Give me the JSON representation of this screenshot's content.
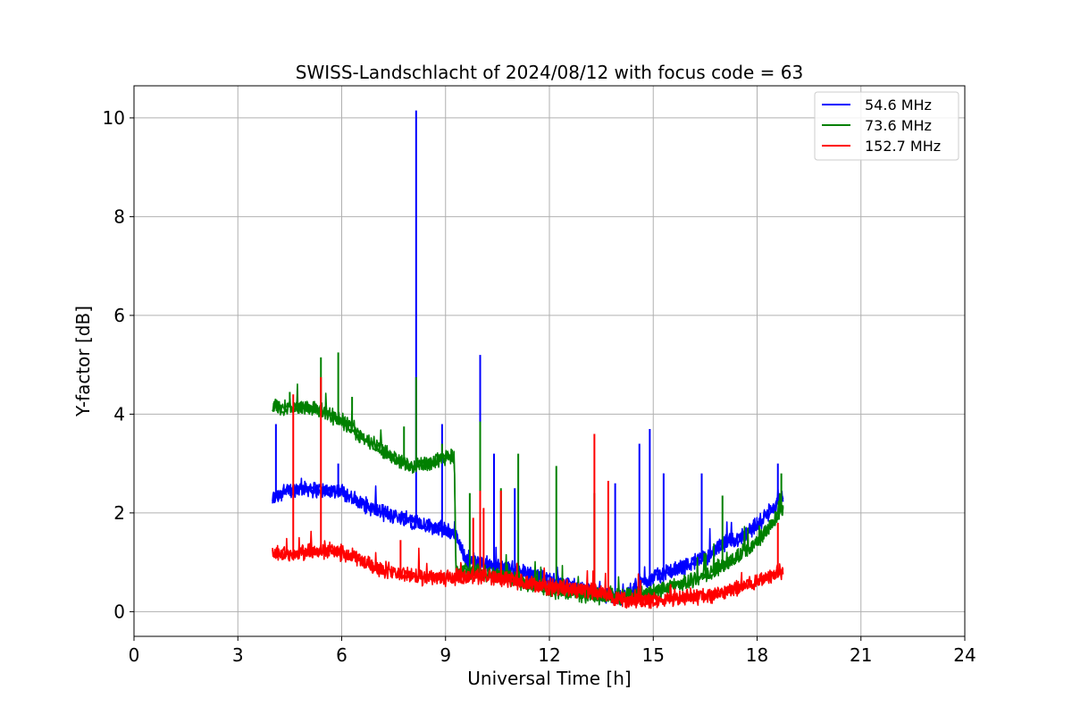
{
  "chart_data": {
    "type": "line",
    "title": "SWISS-Landschlacht of 2024/08/12 with focus code = 63",
    "xlabel": "Universal Time [h]",
    "ylabel": "Y-factor [dB]",
    "xlim": [
      0,
      24
    ],
    "ylim": [
      -0.5,
      10.65
    ],
    "xticks": [
      0,
      3,
      6,
      9,
      12,
      15,
      18,
      21,
      24
    ],
    "yticks": [
      0,
      2,
      4,
      6,
      8,
      10
    ],
    "xtick_labels": [
      "0",
      "3",
      "6",
      "9",
      "12",
      "15",
      "18",
      "21",
      "24"
    ],
    "ytick_labels": [
      "0",
      "2",
      "4",
      "6",
      "8",
      "10"
    ],
    "grid": true,
    "legend_position": "top-right",
    "series": [
      {
        "name": "54.6 MHz",
        "legend_label": "  54.6 MHz",
        "color": "#0000ff",
        "x": [
          4.0,
          4.5,
          5.0,
          5.5,
          6.0,
          6.5,
          7.0,
          7.5,
          8.0,
          8.5,
          9.0,
          9.3,
          9.6,
          10.0,
          10.5,
          11.0,
          11.5,
          12.0,
          12.5,
          13.0,
          13.5,
          14.0,
          14.5,
          15.0,
          15.5,
          16.0,
          16.5,
          17.0,
          17.5,
          18.0,
          18.4,
          18.75
        ],
        "y": [
          2.3,
          2.45,
          2.5,
          2.45,
          2.45,
          2.2,
          2.05,
          1.95,
          1.85,
          1.75,
          1.65,
          1.55,
          1.05,
          1.0,
          0.9,
          0.85,
          0.75,
          0.65,
          0.55,
          0.45,
          0.35,
          0.25,
          0.5,
          0.7,
          0.8,
          0.95,
          1.1,
          1.35,
          1.5,
          1.75,
          2.05,
          2.3
        ],
        "spikes": [
          [
            4.1,
            3.8
          ],
          [
            5.9,
            3.0
          ],
          [
            8.15,
            10.15
          ],
          [
            8.9,
            3.8
          ],
          [
            10.0,
            5.2
          ],
          [
            10.4,
            3.2
          ],
          [
            11.0,
            2.5
          ],
          [
            13.9,
            2.6
          ],
          [
            14.6,
            3.4
          ],
          [
            14.9,
            3.7
          ],
          [
            15.3,
            2.8
          ],
          [
            16.4,
            2.8
          ],
          [
            18.6,
            3.0
          ]
        ]
      },
      {
        "name": "73.6 MHz",
        "legend_label": "  73.6 MHz",
        "color": "#008000",
        "x": [
          4.0,
          4.5,
          5.0,
          5.5,
          6.0,
          6.5,
          7.0,
          7.5,
          8.0,
          8.5,
          9.0,
          9.25,
          9.3,
          10.0,
          10.5,
          11.0,
          11.5,
          12.0,
          12.5,
          13.0,
          13.5,
          14.0,
          14.5,
          15.0,
          15.5,
          16.0,
          16.5,
          17.0,
          17.5,
          18.0,
          18.4,
          18.75
        ],
        "y": [
          4.15,
          4.15,
          4.15,
          4.05,
          3.85,
          3.6,
          3.35,
          3.1,
          2.95,
          3.0,
          3.15,
          3.15,
          0.85,
          0.8,
          0.75,
          0.65,
          0.55,
          0.45,
          0.4,
          0.35,
          0.3,
          0.3,
          0.35,
          0.4,
          0.5,
          0.6,
          0.75,
          0.95,
          1.15,
          1.4,
          1.75,
          2.05
        ],
        "spikes": [
          [
            4.5,
            4.45
          ],
          [
            5.4,
            5.15
          ],
          [
            5.9,
            5.25
          ],
          [
            6.3,
            4.35
          ],
          [
            7.8,
            3.75
          ],
          [
            8.15,
            4.75
          ],
          [
            8.9,
            3.4
          ],
          [
            9.7,
            2.4
          ],
          [
            10.0,
            3.85
          ],
          [
            10.6,
            2.5
          ],
          [
            11.1,
            3.2
          ],
          [
            12.2,
            2.95
          ],
          [
            13.3,
            2.4
          ],
          [
            17.0,
            2.35
          ],
          [
            18.7,
            2.8
          ]
        ]
      },
      {
        "name": "152.7 MHz",
        "legend_label": " 152.7 MHz",
        "color": "#ff0000",
        "x": [
          4.0,
          4.5,
          5.0,
          5.5,
          6.0,
          6.5,
          7.0,
          7.5,
          8.0,
          8.5,
          9.0,
          9.5,
          10.0,
          10.5,
          11.0,
          11.5,
          12.0,
          12.5,
          13.0,
          13.5,
          14.0,
          14.5,
          15.0,
          15.5,
          16.0,
          16.5,
          17.0,
          17.5,
          18.0,
          18.4,
          18.75
        ],
        "y": [
          1.2,
          1.15,
          1.2,
          1.25,
          1.2,
          1.05,
          0.9,
          0.8,
          0.72,
          0.68,
          0.68,
          0.7,
          0.72,
          0.7,
          0.62,
          0.55,
          0.5,
          0.48,
          0.45,
          0.38,
          0.28,
          0.22,
          0.22,
          0.25,
          0.3,
          0.32,
          0.38,
          0.48,
          0.62,
          0.72,
          0.85
        ],
        "spikes": [
          [
            4.6,
            4.4
          ],
          [
            5.4,
            4.75
          ],
          [
            7.7,
            1.45
          ],
          [
            9.8,
            1.9
          ],
          [
            10.0,
            2.45
          ],
          [
            10.1,
            2.1
          ],
          [
            10.6,
            2.45
          ],
          [
            13.3,
            3.6
          ],
          [
            13.7,
            2.65
          ],
          [
            18.6,
            1.8
          ]
        ]
      }
    ]
  }
}
